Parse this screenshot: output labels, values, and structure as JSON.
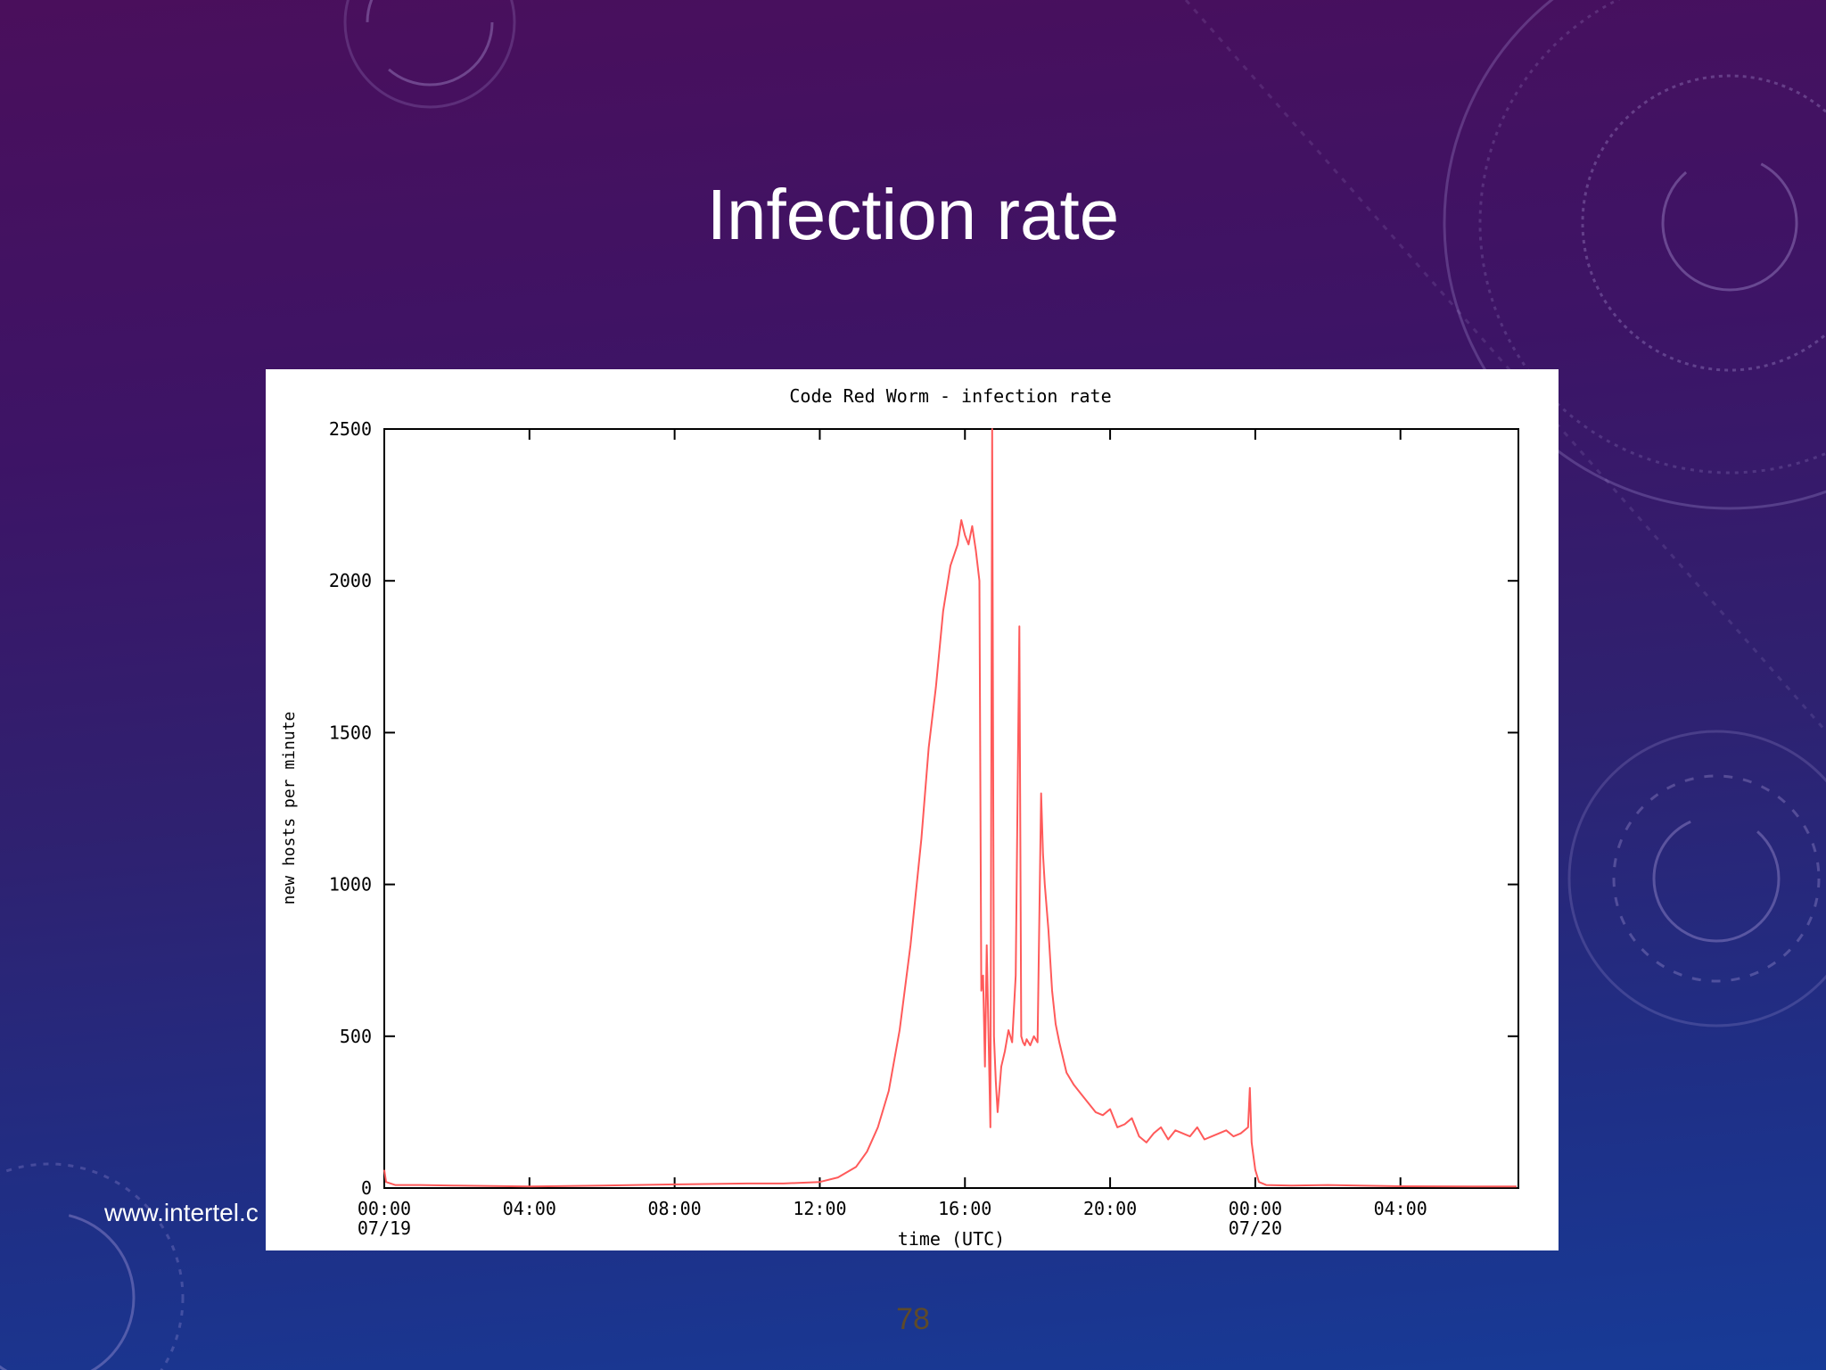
{
  "slide": {
    "title": "Infection rate",
    "footer_url": "www.intertel.c",
    "page_number": "78"
  },
  "colors": {
    "series": "#ff5a5a",
    "background_top": "#4a0f5c",
    "background_bottom": "#173b97"
  },
  "chart_data": {
    "type": "line",
    "title": "Code Red Worm - infection rate",
    "xlabel": "time (UTC)",
    "ylabel": "new hosts per minute",
    "xlim": [
      0,
      31.25
    ],
    "ylim": [
      0,
      2500
    ],
    "yticks": [
      0,
      500,
      1000,
      1500,
      2000,
      2500
    ],
    "xticks": [
      {
        "value": 0,
        "label": "00:00",
        "sublabel": "07/19"
      },
      {
        "value": 4,
        "label": "04:00",
        "sublabel": ""
      },
      {
        "value": 8,
        "label": "08:00",
        "sublabel": ""
      },
      {
        "value": 12,
        "label": "12:00",
        "sublabel": ""
      },
      {
        "value": 16,
        "label": "16:00",
        "sublabel": ""
      },
      {
        "value": 20,
        "label": "20:00",
        "sublabel": ""
      },
      {
        "value": 24,
        "label": "00:00",
        "sublabel": "07/20"
      },
      {
        "value": 28,
        "label": "04:00",
        "sublabel": ""
      }
    ],
    "grid": false,
    "legend": "none",
    "series": [
      {
        "x": [
          0,
          0.05,
          0.3,
          1,
          2,
          4,
          6,
          8,
          10,
          11,
          12,
          12.5,
          13,
          13.3,
          13.6,
          13.9,
          14.2,
          14.5,
          14.8,
          15.0,
          15.2,
          15.4,
          15.6,
          15.8,
          15.9,
          16.0,
          16.1,
          16.2,
          16.3,
          16.4,
          16.45,
          16.5,
          16.55,
          16.6,
          16.7,
          16.75,
          16.8,
          16.85,
          16.9,
          17.0,
          17.1,
          17.2,
          17.3,
          17.4,
          17.5,
          17.55,
          17.6,
          17.65,
          17.7,
          17.8,
          17.9,
          18.0,
          18.1,
          18.15,
          18.2,
          18.3,
          18.4,
          18.5,
          18.6,
          18.8,
          19.0,
          19.2,
          19.4,
          19.6,
          19.8,
          20.0,
          20.2,
          20.4,
          20.6,
          20.8,
          21.0,
          21.2,
          21.4,
          21.6,
          21.8,
          22.0,
          22.2,
          22.4,
          22.6,
          22.8,
          23.0,
          23.2,
          23.4,
          23.6,
          23.8,
          23.85,
          23.9,
          24.0,
          24.1,
          24.3,
          25,
          26,
          28,
          30,
          31.2
        ],
        "y": [
          60,
          20,
          10,
          10,
          8,
          5,
          8,
          12,
          15,
          15,
          20,
          35,
          70,
          120,
          200,
          320,
          520,
          800,
          1150,
          1450,
          1650,
          1900,
          2050,
          2120,
          2200,
          2150,
          2120,
          2180,
          2100,
          2000,
          650,
          700,
          400,
          800,
          200,
          2500,
          500,
          350,
          250,
          400,
          450,
          520,
          480,
          700,
          1850,
          500,
          480,
          470,
          490,
          470,
          500,
          480,
          1300,
          1100,
          1000,
          850,
          650,
          540,
          480,
          380,
          340,
          310,
          280,
          250,
          240,
          260,
          200,
          210,
          230,
          170,
          150,
          180,
          200,
          160,
          190,
          180,
          170,
          200,
          160,
          170,
          180,
          190,
          170,
          180,
          200,
          330,
          150,
          60,
          20,
          10,
          8,
          10,
          6,
          5,
          5
        ]
      }
    ]
  }
}
